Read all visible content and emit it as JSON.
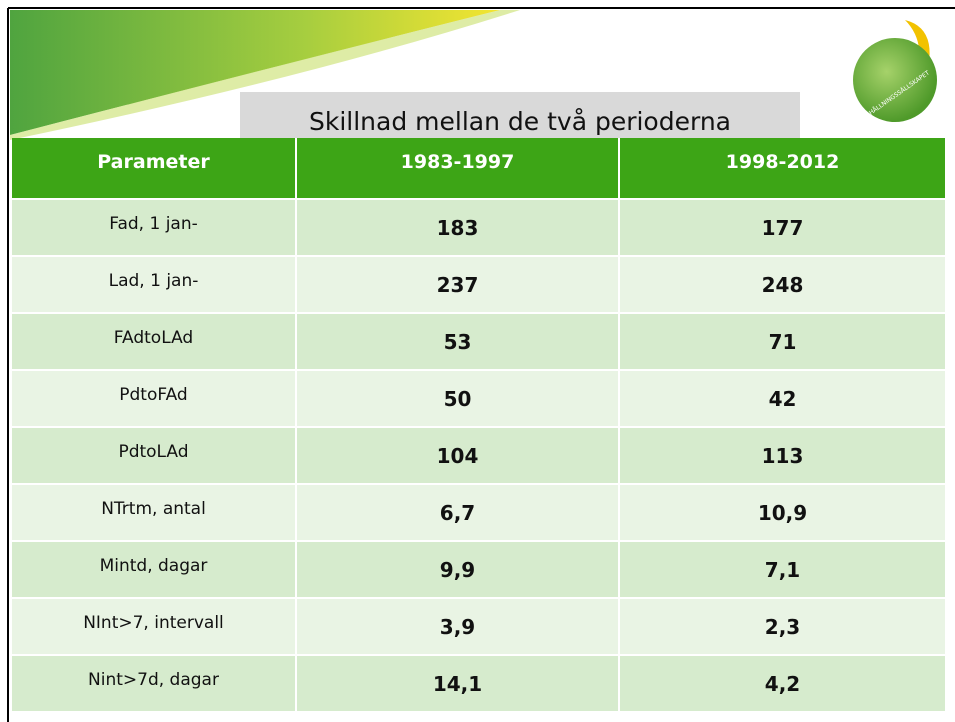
{
  "title": "Skillnad mellan de två perioderna",
  "logo": {
    "text": "HUSHÅLLNINGSSÄLLSKAPET"
  },
  "table": {
    "header": [
      "Parameter",
      "1983-1997",
      "1998-2012"
    ],
    "rows": [
      [
        "Fad, 1 jan-",
        "183",
        "177"
      ],
      [
        "Lad, 1 jan-",
        "237",
        "248"
      ],
      [
        "FAdtoLAd",
        "53",
        "71"
      ],
      [
        "PdtoFAd",
        "50",
        "42"
      ],
      [
        "PdtoLAd",
        "104",
        "113"
      ],
      [
        "NTrtm, antal",
        "6,7",
        "10,9"
      ],
      [
        "Mintd, dagar",
        "9,9",
        "7,1"
      ],
      [
        "NInt>7, intervall",
        "3,9",
        "2,3"
      ],
      [
        "Nint>7d, dagar",
        "14,1",
        "4,2"
      ]
    ]
  }
}
